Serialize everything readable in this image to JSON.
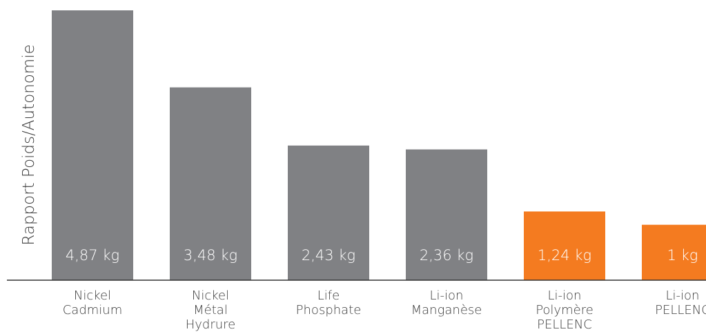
{
  "chart_data": {
    "type": "bar",
    "ylabel": "Rapport Poids/Autonomie",
    "categories": [
      [
        "Nickel",
        "Cadmium"
      ],
      [
        "Nickel",
        "Métal",
        "Hydrure"
      ],
      [
        "Life",
        "Phosphate"
      ],
      [
        "Li-ion",
        "Manganèse"
      ],
      [
        "Li-ion",
        "Polymère",
        "PELLENC"
      ],
      [
        "Li-ion",
        "PELLENC"
      ]
    ],
    "values": [
      4.87,
      3.48,
      2.43,
      2.36,
      1.24,
      1
    ],
    "value_labels": [
      "4,87 kg",
      "3,48 kg",
      "2,43 kg",
      "2,36 kg",
      "1,24 kg",
      "1 kg"
    ],
    "bar_colors": [
      "#808184",
      "#808184",
      "#808184",
      "#808184",
      "#f47b20",
      "#f47b20"
    ],
    "grid": false,
    "legend": "none"
  },
  "colors": {
    "gray_bar": "#808184",
    "accent": "#f47b20",
    "axis": "#333333",
    "text": "#3a3a3a"
  }
}
